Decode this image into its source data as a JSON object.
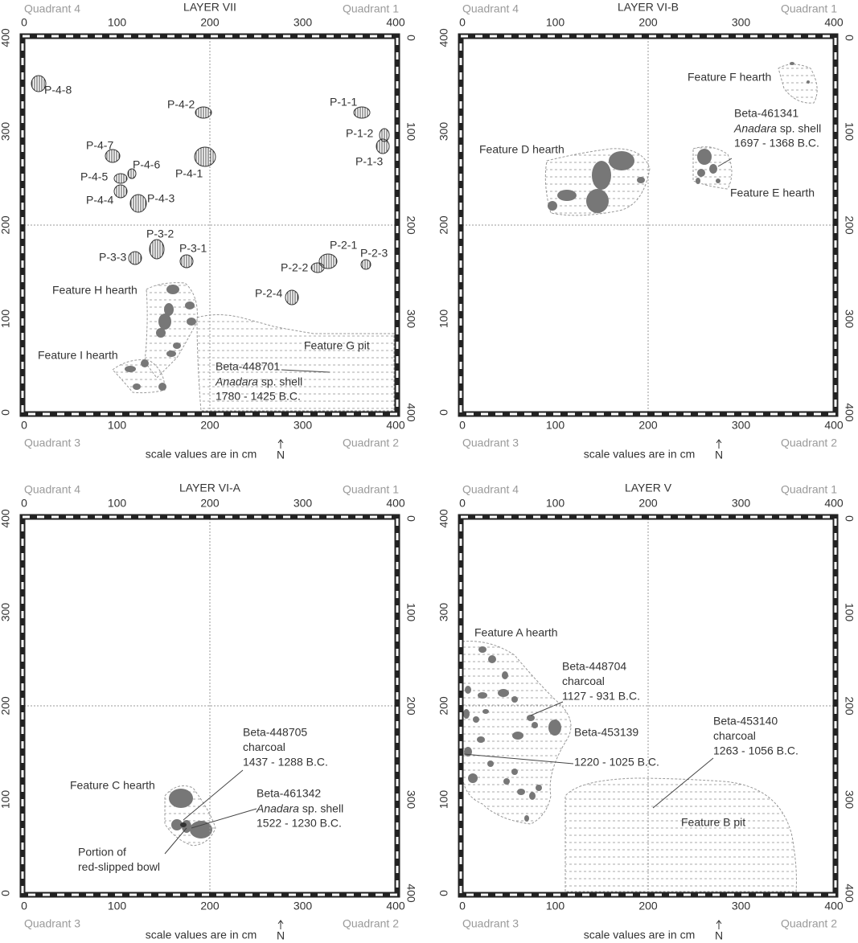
{
  "panels": [
    {
      "title": "LAYER VII",
      "quadrants": [
        "Quadrant 4",
        "Quadrant 1",
        "Quadrant 3",
        "Quadrant 2"
      ],
      "ticks": [
        0,
        100,
        200,
        300,
        400
      ],
      "note": "scale values are in cm",
      "north": "N",
      "labels": [
        {
          "lines": [
            "P-4-8"
          ]
        },
        {
          "lines": [
            "P-4-2"
          ]
        },
        {
          "lines": [
            "P-1-1"
          ]
        },
        {
          "lines": [
            "P-1-2"
          ]
        },
        {
          "lines": [
            "P-1-3"
          ]
        },
        {
          "lines": [
            "P-4-7"
          ]
        },
        {
          "lines": [
            "P-4-6"
          ]
        },
        {
          "lines": [
            "P-4-1"
          ]
        },
        {
          "lines": [
            "P-4-5"
          ]
        },
        {
          "lines": [
            "P-4-3"
          ]
        },
        {
          "lines": [
            "P-4-4"
          ]
        },
        {
          "lines": [
            "P-3-2"
          ]
        },
        {
          "lines": [
            "P-3-1"
          ]
        },
        {
          "lines": [
            "P-3-3"
          ]
        },
        {
          "lines": [
            "P-2-1"
          ]
        },
        {
          "lines": [
            "P-2-3"
          ]
        },
        {
          "lines": [
            "P-2-2"
          ]
        },
        {
          "lines": [
            "P-2-4"
          ]
        },
        {
          "lines": [
            "Feature H hearth"
          ]
        },
        {
          "lines": [
            "Feature G pit"
          ]
        },
        {
          "lines": [
            "Feature I hearth"
          ]
        },
        {
          "lines": [
            "Beta-448701",
            {
              "italic": "Anadara",
              "text": " sp. shell"
            },
            "1780 - 1425 B.C."
          ]
        }
      ]
    },
    {
      "title": "LAYER VI-B",
      "quadrants": [
        "Quadrant 4",
        "Quadrant 1",
        "Quadrant 3",
        "Quadrant 2"
      ],
      "ticks": [
        0,
        100,
        200,
        300,
        400
      ],
      "note": "scale values are in cm",
      "north": "N",
      "labels": [
        {
          "lines": [
            "Feature F hearth"
          ]
        },
        {
          "lines": [
            "Beta-461341",
            {
              "italic": "Anadara",
              "text": " sp. shell"
            },
            "1697 - 1368 B.C."
          ]
        },
        {
          "lines": [
            "Feature D hearth"
          ]
        },
        {
          "lines": [
            "Feature E hearth"
          ]
        }
      ]
    },
    {
      "title": "LAYER VI-A",
      "quadrants": [
        "Quadrant 4",
        "Quadrant 1",
        "Quadrant 3",
        "Quadrant 2"
      ],
      "ticks": [
        0,
        100,
        200,
        300,
        400
      ],
      "note": "scale values are in cm",
      "north": "N",
      "labels": [
        {
          "lines": [
            "Beta-448705",
            "charcoal",
            "1437 - 1288 B.C."
          ]
        },
        {
          "lines": [
            "Feature C hearth"
          ]
        },
        {
          "lines": [
            "Beta-461342",
            {
              "italic": "Anadara",
              "text": " sp. shell"
            },
            "1522 - 1230 B.C."
          ]
        },
        {
          "lines": [
            "Portion of",
            "red-slipped bowl"
          ]
        }
      ]
    },
    {
      "title": "LAYER V",
      "quadrants": [
        "Quadrant 4",
        "Quadrant 1",
        "Quadrant 3",
        "Quadrant 2"
      ],
      "ticks": [
        0,
        100,
        200,
        300,
        400
      ],
      "note": "scale values are in cm",
      "north": "N",
      "labels": [
        {
          "lines": [
            "Feature A hearth"
          ]
        },
        {
          "lines": [
            "Beta-448704",
            "charcoal",
            "1127 - 931 B.C."
          ]
        },
        {
          "lines": [
            "Beta-453139",
            "1220 - 1025 B.C."
          ]
        },
        {
          "lines": [
            "Beta-453140",
            "charcoal",
            "1263 - 1056 B.C."
          ]
        },
        {
          "lines": [
            "Feature B pit"
          ]
        }
      ]
    }
  ]
}
